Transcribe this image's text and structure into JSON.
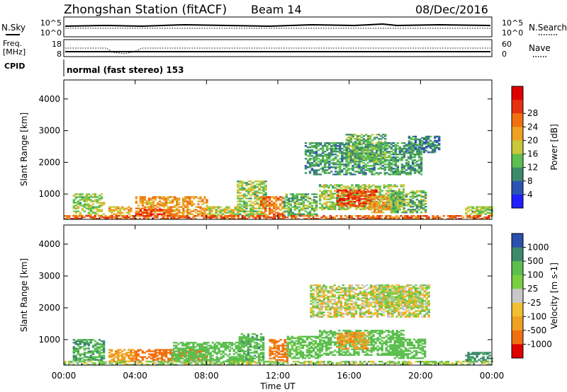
{
  "header": {
    "station": "Zhongshan Station (fitACF)",
    "beam": "Beam 14",
    "date": "08/Dec/2016"
  },
  "top_panels": {
    "nsky_label": "N.Sky",
    "nsearch_label": "N.Search",
    "nsky_ticks": [
      "10^5",
      "10^0"
    ],
    "nsearch_ticks": [
      "10^5",
      "10^0"
    ],
    "freq_label": "Freq.",
    "freq_unit": "[MHz]",
    "freq_ticks": [
      "18",
      "8"
    ],
    "nave_label": "Nave",
    "nave_ticks": [
      "60",
      "0"
    ],
    "cpid_label": "CPID",
    "cpid_value": "normal (fast stereo) 153"
  },
  "chart_data": [
    {
      "type": "heatmap",
      "panel": "power",
      "title": "",
      "xlabel": "",
      "ylabel": "Slant Range [km]",
      "x_ticks": [
        "00:00",
        "04:00",
        "08:00",
        "12:00",
        "16:00",
        "20:00",
        "00:00"
      ],
      "y_ticks": [
        "1000",
        "2000",
        "3000",
        "4000"
      ],
      "ylim": [
        200,
        4600
      ],
      "colorbar": {
        "label": "Power [dB]",
        "ticks": [
          "4",
          "8",
          "12",
          "16",
          "20",
          "24",
          "28"
        ],
        "colors": [
          "#1f1fff",
          "#2c55b3",
          "#3d8a6b",
          "#5cbf4f",
          "#c8c83a",
          "#f0a020",
          "#f07010",
          "#e63010",
          "#e00000"
        ]
      },
      "regions": [
        {
          "t": [
            0.5,
            2.2
          ],
          "r": [
            300,
            1000
          ],
          "v": 14
        },
        {
          "t": [
            2.5,
            3.8
          ],
          "r": [
            300,
            600
          ],
          "v": 18
        },
        {
          "t": [
            4,
            8
          ],
          "r": [
            300,
            900
          ],
          "v": 20
        },
        {
          "t": [
            4,
            6
          ],
          "r": [
            300,
            500
          ],
          "v": 26
        },
        {
          "t": [
            8,
            10
          ],
          "r": [
            300,
            600
          ],
          "v": 16
        },
        {
          "t": [
            9.7,
            11.3
          ],
          "r": [
            300,
            1400
          ],
          "v": 14
        },
        {
          "t": [
            11,
            12.3
          ],
          "r": [
            300,
            900
          ],
          "v": 22
        },
        {
          "t": [
            12.3,
            14.2
          ],
          "r": [
            300,
            1000
          ],
          "v": 12
        },
        {
          "t": [
            14.3,
            19
          ],
          "r": [
            500,
            1300
          ],
          "v": 14
        },
        {
          "t": [
            15.3,
            17.5
          ],
          "r": [
            600,
            1100
          ],
          "v": 26
        },
        {
          "t": [
            17,
            18.3
          ],
          "r": [
            400,
            900
          ],
          "v": 20
        },
        {
          "t": [
            18.3,
            20.3
          ],
          "r": [
            400,
            1100
          ],
          "v": 12
        },
        {
          "t": [
            13.5,
            20
          ],
          "r": [
            1600,
            2600
          ],
          "v": 10
        },
        {
          "t": [
            15.8,
            18
          ],
          "r": [
            2000,
            2900
          ],
          "v": 12
        },
        {
          "t": [
            19.3,
            21
          ],
          "r": [
            2300,
            2800
          ],
          "v": 8
        },
        {
          "t": [
            22.5,
            24
          ],
          "r": [
            300,
            600
          ],
          "v": 14
        },
        {
          "t": [
            0,
            24
          ],
          "r": [
            200,
            320
          ],
          "v": 24
        }
      ]
    },
    {
      "type": "heatmap",
      "panel": "velocity",
      "title": "",
      "xlabel": "Time UT",
      "ylabel": "Slant Range [km]",
      "x_ticks": [
        "00:00",
        "04:00",
        "08:00",
        "12:00",
        "16:00",
        "20:00",
        "00:00"
      ],
      "y_ticks": [
        "1000",
        "2000",
        "3000",
        "4000"
      ],
      "ylim": [
        200,
        4600
      ],
      "colorbar": {
        "label": "Velocity [m s-1]",
        "ticks": [
          "1000",
          "500",
          "100",
          "25",
          "-25",
          "-100",
          "-500",
          "-1000"
        ],
        "colors": [
          "#2c50b0",
          "#3d8a6b",
          "#5cbf4f",
          "#7ad040",
          "#c8c8c8",
          "#f0c030",
          "#f0a020",
          "#f07010",
          "#e00000"
        ]
      },
      "regions": [
        {
          "t": [
            0.5,
            2.2
          ],
          "r": [
            300,
            1000
          ],
          "v": 500
        },
        {
          "t": [
            2.5,
            4
          ],
          "r": [
            300,
            700
          ],
          "v": -400
        },
        {
          "t": [
            4,
            8
          ],
          "r": [
            300,
            700
          ],
          "v": -700
        },
        {
          "t": [
            6,
            10
          ],
          "r": [
            300,
            900
          ],
          "v": 300
        },
        {
          "t": [
            9.8,
            11.2
          ],
          "r": [
            300,
            1200
          ],
          "v": 400
        },
        {
          "t": [
            11.5,
            12.5
          ],
          "r": [
            300,
            1000
          ],
          "v": -600
        },
        {
          "t": [
            12.5,
            14.3
          ],
          "r": [
            400,
            1100
          ],
          "v": 200
        },
        {
          "t": [
            14.3,
            19
          ],
          "r": [
            500,
            1300
          ],
          "v": 300
        },
        {
          "t": [
            15.3,
            17
          ],
          "r": [
            700,
            1200
          ],
          "v": -400
        },
        {
          "t": [
            18.5,
            20.3
          ],
          "r": [
            400,
            1000
          ],
          "v": 300
        },
        {
          "t": [
            13.8,
            20.5
          ],
          "r": [
            1700,
            2700
          ],
          "v": 0
        },
        {
          "t": [
            17.5,
            20
          ],
          "r": [
            2000,
            2600
          ],
          "v": 0
        },
        {
          "t": [
            22.5,
            24
          ],
          "r": [
            300,
            600
          ],
          "v": 600
        },
        {
          "t": [
            0,
            24
          ],
          "r": [
            200,
            320
          ],
          "v": 50
        }
      ]
    }
  ]
}
